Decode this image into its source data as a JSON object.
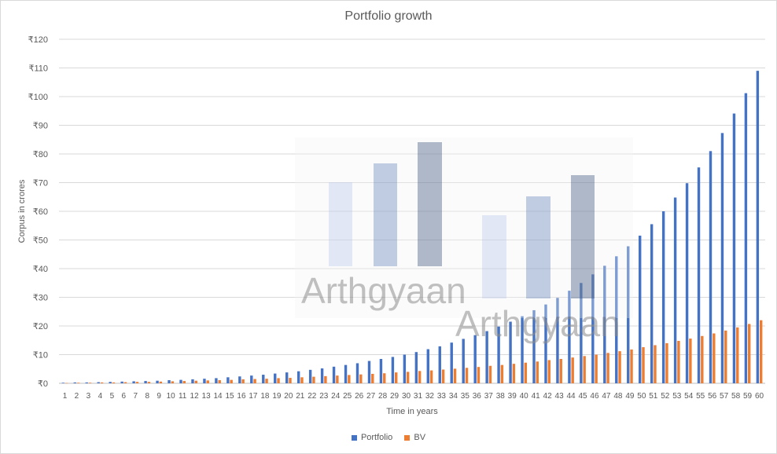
{
  "chart_data": {
    "type": "bar",
    "title": "Portfolio growth",
    "xlabel": "Time  in years",
    "ylabel": "Corpus in crores",
    "ylim": [
      0,
      120
    ],
    "yticks": [
      "₹0",
      "₹10",
      "₹20",
      "₹30",
      "₹40",
      "₹50",
      "₹60",
      "₹70",
      "₹80",
      "₹90",
      "₹100",
      "₹110",
      "₹120"
    ],
    "categories": [
      "1",
      "2",
      "3",
      "4",
      "5",
      "6",
      "7",
      "8",
      "9",
      "10",
      "11",
      "12",
      "13",
      "14",
      "15",
      "16",
      "17",
      "18",
      "19",
      "20",
      "21",
      "22",
      "23",
      "24",
      "25",
      "26",
      "27",
      "28",
      "29",
      "30",
      "31",
      "32",
      "33",
      "34",
      "35",
      "36",
      "37",
      "38",
      "39",
      "40",
      "41",
      "42",
      "43",
      "44",
      "45",
      "46",
      "47",
      "48",
      "49",
      "50",
      "51",
      "52",
      "53",
      "54",
      "55",
      "56",
      "57",
      "58",
      "59",
      "60"
    ],
    "grid": true,
    "legend_position": "bottom",
    "series": [
      {
        "name": "Portfolio",
        "color": "#4472c4",
        "values": [
          0.2,
          0.3,
          0.3,
          0.4,
          0.5,
          0.6,
          0.7,
          0.8,
          0.9,
          1.1,
          1.2,
          1.4,
          1.6,
          1.8,
          2.1,
          2.4,
          2.7,
          3.0,
          3.4,
          3.8,
          4.2,
          4.7,
          5.2,
          5.8,
          6.4,
          7.0,
          7.8,
          8.5,
          9.2,
          10.0,
          10.9,
          11.9,
          12.9,
          14.2,
          15.5,
          16.8,
          18.2,
          19.8,
          21.5,
          23.4,
          25.5,
          27.5,
          29.8,
          32.3,
          35.0,
          38.0,
          41.0,
          44.3,
          47.8,
          51.5,
          55.5,
          60.0,
          64.8,
          69.8,
          75.3,
          81.0,
          87.3,
          94.1,
          101.2,
          109.0
        ]
      },
      {
        "name": "BV",
        "color": "#ed7d31",
        "values": [
          0.1,
          0.2,
          0.2,
          0.3,
          0.3,
          0.4,
          0.5,
          0.5,
          0.6,
          0.7,
          0.8,
          0.9,
          1.0,
          1.1,
          1.2,
          1.4,
          1.5,
          1.6,
          1.8,
          1.9,
          2.1,
          2.3,
          2.5,
          2.7,
          2.9,
          3.1,
          3.3,
          3.5,
          3.8,
          4.0,
          4.3,
          4.5,
          4.8,
          5.1,
          5.4,
          5.7,
          6.1,
          6.4,
          6.8,
          7.2,
          7.6,
          8.1,
          8.5,
          9.0,
          9.5,
          10.0,
          10.6,
          11.2,
          11.8,
          12.6,
          13.3,
          14.0,
          14.8,
          15.6,
          16.5,
          17.4,
          18.4,
          19.5,
          20.7,
          22.0
        ]
      }
    ],
    "watermark": "Arthgyaan"
  }
}
